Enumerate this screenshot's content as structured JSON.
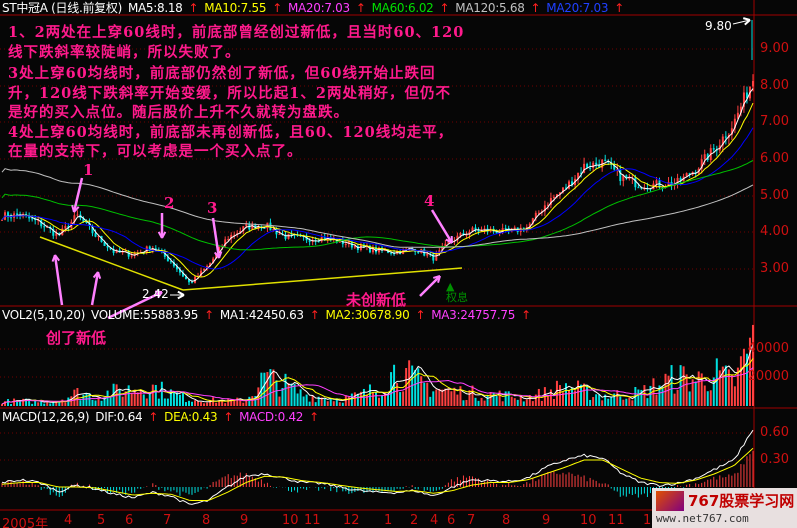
{
  "header": {
    "title": "ST中冠A (日线.前复权)",
    "ma5": "MA5:8.18",
    "ma10": "MA10:7.55",
    "ma20": "MA20:7.03",
    "ma60": "MA60:6.02",
    "ma120": "MA120:5.68",
    "ma20b": "MA20:7.03",
    "arrow": "↑"
  },
  "notes": [
    "1、2两处在上穿60线时，前底部曾经创过新低，且当时60、120",
    "线下跌斜率较陡峭，所以失败了。",
    "3处上穿60均线时，前底部仍然创了新低，但60线开始止跌回",
    "升，120线下跌斜率开始变缓，所以比起1、2两处稍好，但仍不",
    "是好的买入点位。随后股价上升不久就转为盘跌。",
    "4处上穿60均线时，前底部未再创新低，且60、120线均走平，",
    "在量的支持下，可以考虑是一个买入点了。"
  ],
  "annotations": {
    "p1": "1",
    "p2": "2",
    "p3": "3",
    "p4": "4",
    "low": "2.42",
    "high": "9.80",
    "new_low": "创了新低",
    "no_new_low": "未创新低",
    "rights": "权息"
  },
  "volume_header": {
    "title": "VOL2(5,10,20)",
    "volume": "VOLUME:55883.95",
    "ma1": "MA1:42450.63",
    "ma2": "MA2:30678.90",
    "ma3": "MA3:24757.75"
  },
  "macd_header": {
    "title": "MACD(12,26,9)",
    "dif": "DIF:0.64",
    "dea": "DEA:0.43",
    "macd": "MACD:0.42"
  },
  "logo": {
    "name": "767股票学习网",
    "url": "www.net767.com"
  },
  "colors": {
    "up": "#ff4040",
    "down": "#00e0e0",
    "ma5": "#ffffff",
    "ma10": "#ffff00",
    "ma20": "#0000ff",
    "ma60": "#00c000",
    "ma120": "#c0c0c0",
    "note": "#ff1a8c",
    "axis": "#d01010"
  },
  "chart_data": [
    {
      "type": "candlestick",
      "panel": "price",
      "ylim": [
        2.3,
        10
      ],
      "yticks": [
        "9.00",
        "8.00",
        "7.00",
        "6.00",
        "5.00",
        "4.00",
        "3.00"
      ],
      "approx_close": [
        4.45,
        4.47,
        4.25,
        3.9,
        4.45,
        3.9,
        3.45,
        3.4,
        3.6,
        3.2,
        2.6,
        3.1,
        3.85,
        4.15,
        4.2,
        3.9,
        3.82,
        3.85,
        3.75,
        3.6,
        3.5,
        3.47,
        3.55,
        3.3,
        3.8,
        4.05,
        4.05,
        4.0,
        4.15,
        4.8,
        5.2,
        5.8,
        5.9,
        5.5,
        5.3,
        5.3,
        5.35,
        5.75,
        6.3,
        7.0,
        8.2
      ],
      "low": 2.42,
      "high": 9.8
    },
    {
      "type": "bar",
      "panel": "volume",
      "yticks": [
        "40000",
        "20000"
      ],
      "approx_volume": [
        3000,
        3500,
        3000,
        4000,
        9000,
        7000,
        10000,
        12000,
        13000,
        9000,
        5000,
        4000,
        3500,
        4000,
        20000,
        15000,
        8000,
        6000,
        5000,
        7000,
        12000,
        25000,
        18000,
        12000,
        10000,
        9000,
        8000,
        7000,
        6000,
        9000,
        14000,
        10000,
        7000,
        8000,
        9000,
        15000,
        20000,
        18000,
        22000,
        16000,
        45000
      ]
    },
    {
      "type": "line",
      "panel": "macd",
      "yticks": [
        "0.60",
        "0.30"
      ],
      "approx_dif": [
        0.05,
        0.08,
        0.05,
        -0.05,
        0.02,
        -0.02,
        -0.08,
        -0.12,
        -0.06,
        -0.1,
        -0.2,
        -0.15,
        0.0,
        0.12,
        0.15,
        0.1,
        0.05,
        0.04,
        0.0,
        -0.04,
        -0.06,
        -0.06,
        -0.04,
        -0.1,
        0.0,
        0.08,
        0.07,
        0.06,
        0.1,
        0.22,
        0.3,
        0.35,
        0.32,
        0.15,
        0.05,
        0.02,
        0.04,
        0.1,
        0.2,
        0.3,
        0.64
      ],
      "approx_dea": [
        0.03,
        0.05,
        0.05,
        0.0,
        0.0,
        -0.01,
        -0.05,
        -0.09,
        -0.07,
        -0.08,
        -0.15,
        -0.15,
        -0.06,
        0.05,
        0.12,
        0.11,
        0.07,
        0.05,
        0.02,
        -0.01,
        -0.03,
        -0.05,
        -0.04,
        -0.07,
        -0.04,
        0.02,
        0.05,
        0.05,
        0.08,
        0.15,
        0.22,
        0.3,
        0.3,
        0.2,
        0.1,
        0.05,
        0.04,
        0.08,
        0.15,
        0.24,
        0.43
      ]
    },
    {
      "type": "axis",
      "panel": "date",
      "ticks": [
        "2005年",
        "4",
        "5",
        "6",
        "7",
        "8",
        "9",
        "10",
        "11",
        "12",
        "1",
        "2",
        "4",
        "6",
        "7",
        "8",
        "9",
        "10",
        "11",
        "1"
      ]
    }
  ]
}
